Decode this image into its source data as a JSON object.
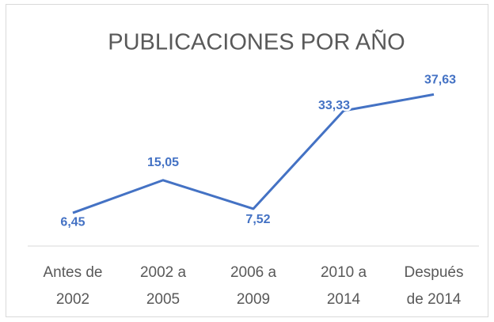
{
  "chart_data": {
    "type": "line",
    "title": "PUBLICACIONES POR AÑO",
    "categories": [
      "Antes de\n2002",
      "2002 a\n2005",
      "2006 a\n2009",
      "2010 a\n2014",
      "Después\nde 2014"
    ],
    "series": [
      {
        "color": "#4472c4",
        "values": [
          6.45,
          15.05,
          7.52,
          33.33,
          37.63
        ],
        "value_labels": [
          "6,45",
          "15,05",
          "7,52",
          "33,33",
          "37,63"
        ]
      }
    ],
    "ylim": [
      0,
      40
    ]
  }
}
